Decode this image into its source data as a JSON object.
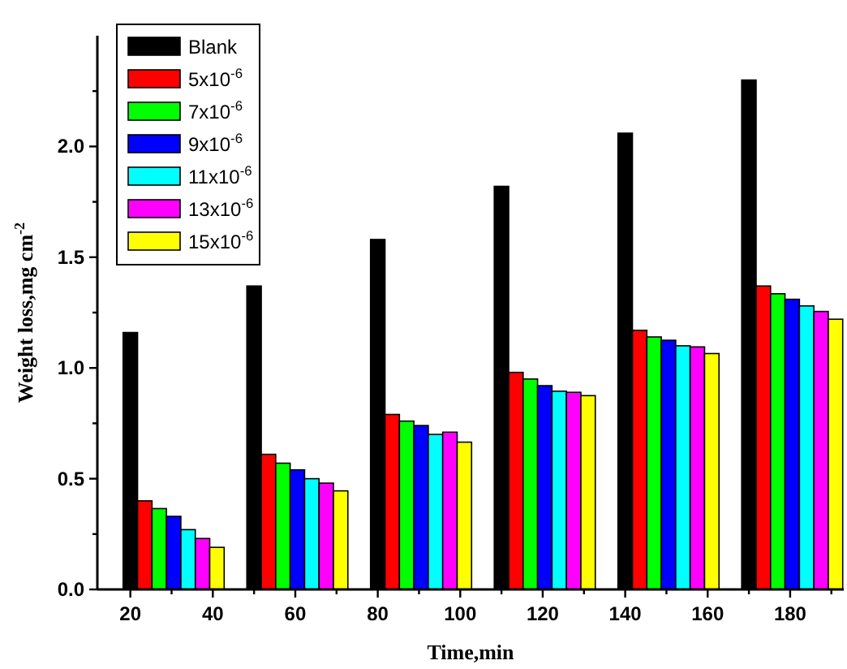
{
  "chart_data": {
    "type": "bar",
    "xlabel": "Time,min",
    "ylabel": "Weight loss,mg cm$^{-2}$",
    "legend": "top left",
    "xlim": [
      12,
      193
    ],
    "ylim": [
      0,
      2.5
    ],
    "xticks": [
      20,
      {
        "value": 30,
        "label": null
      },
      40,
      {
        "value": 50,
        "label": null
      },
      60,
      {
        "value": 70,
        "label": null
      },
      80,
      {
        "value": 90,
        "label": null
      },
      100,
      {
        "value": 110,
        "label": null
      },
      120,
      {
        "value": 130,
        "label": null
      },
      140,
      {
        "value": 150,
        "label": null
      },
      160,
      {
        "value": 170,
        "label": null
      },
      180,
      {
        "value": 190,
        "label": null
      }
    ],
    "yticks": [
      {
        "value": 0,
        "label": "0.0"
      },
      {
        "value": 0.25,
        "label": null
      },
      {
        "value": 0.5,
        "label": "0.5"
      },
      {
        "value": 0.75,
        "label": null
      },
      {
        "value": 1,
        "label": "1.0"
      },
      {
        "value": 1.25,
        "label": null
      },
      {
        "value": 1.5,
        "label": "1.5"
      },
      {
        "value": 1.75,
        "label": null
      },
      {
        "value": 2,
        "label": "2.0"
      },
      {
        "value": 2.25,
        "label": null
      }
    ],
    "series": [
      {
        "name": "Blank",
        "color": "#000000",
        "x": [
          20,
          50,
          80,
          110,
          140,
          170
        ],
        "values": [
          1.16,
          1.37,
          1.58,
          1.82,
          2.06,
          2.3
        ]
      },
      {
        "name": "5x10$^{-6}$",
        "color": "#ff0000",
        "x": [
          23.5,
          53.5,
          83.5,
          113.5,
          143.5,
          173.5
        ],
        "values": [
          0.4,
          0.61,
          0.79,
          0.98,
          1.17,
          1.37
        ]
      },
      {
        "name": "7x10$^{-6}$",
        "color": "#00ff00",
        "x": [
          27,
          57,
          87,
          117,
          147,
          177
        ],
        "values": [
          0.365,
          0.57,
          0.76,
          0.95,
          1.14,
          1.335
        ]
      },
      {
        "name": "9x10$^{-6}$",
        "color": "#0000ff",
        "x": [
          30.5,
          60.5,
          90.5,
          120.5,
          150.5,
          180.5
        ],
        "values": [
          0.33,
          0.54,
          0.74,
          0.92,
          1.125,
          1.31
        ]
      },
      {
        "name": "11x10$^{-6}$",
        "color": "#00ffff",
        "x": [
          34,
          64,
          94,
          124,
          154,
          184
        ],
        "values": [
          0.27,
          0.5,
          0.7,
          0.895,
          1.1,
          1.28
        ]
      },
      {
        "name": "13x10$^{-6}$",
        "color": "#ff00ff",
        "x": [
          37.5,
          67.5,
          97.5,
          127.5,
          157.5,
          187.5
        ],
        "values": [
          0.23,
          0.48,
          0.71,
          0.89,
          1.095,
          1.255
        ]
      },
      {
        "name": "15x10$^{-6}$",
        "color": "#ffff00",
        "x": [
          41,
          71,
          101,
          131,
          161,
          191
        ],
        "values": [
          0.19,
          0.445,
          0.665,
          0.875,
          1.065,
          1.22
        ]
      }
    ]
  }
}
